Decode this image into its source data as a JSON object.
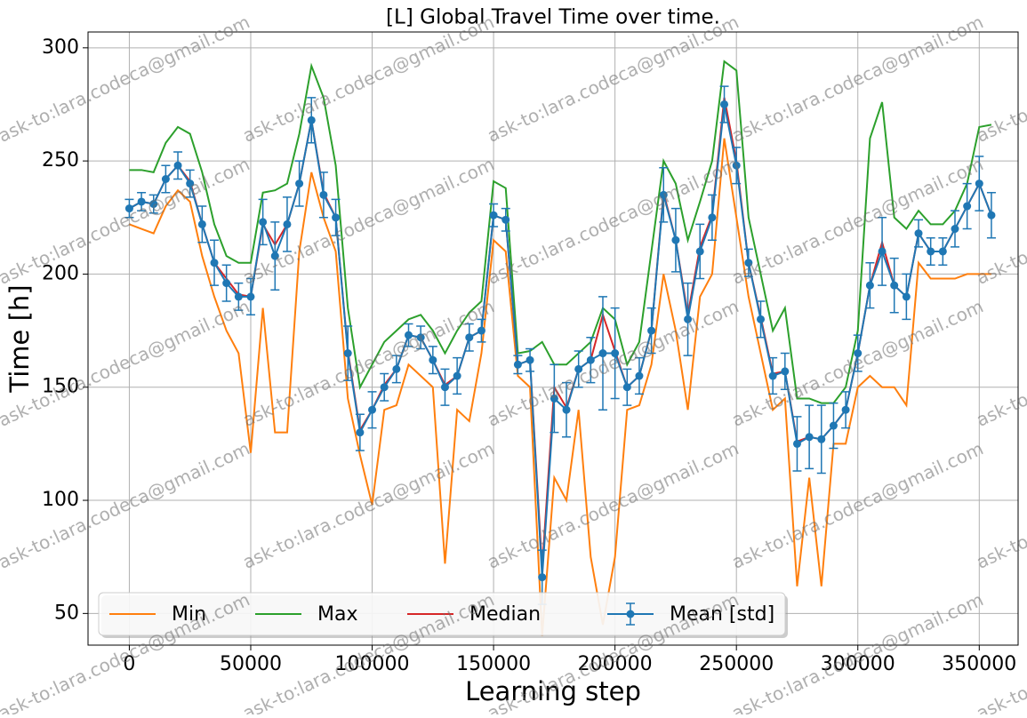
{
  "chart_data": {
    "type": "line",
    "title": "[L] Global Travel Time over time.",
    "xlabel": "Learning step",
    "ylabel": "Time [h]",
    "watermark": "ask-to:lara.codeca@gmail.com",
    "xlim": [
      -17000,
      366000
    ],
    "ylim": [
      36,
      307
    ],
    "xticks": [
      0,
      50000,
      100000,
      150000,
      200000,
      250000,
      300000,
      350000
    ],
    "yticks": [
      50,
      100,
      150,
      200,
      250,
      300
    ],
    "grid": true,
    "legend": "lower left",
    "x": [
      0,
      5000,
      10000,
      15000,
      20000,
      25000,
      30000,
      35000,
      40000,
      45000,
      50000,
      55000,
      60000,
      65000,
      70000,
      75000,
      80000,
      85000,
      90000,
      95000,
      100000,
      105000,
      110000,
      115000,
      120000,
      125000,
      130000,
      135000,
      140000,
      145000,
      150000,
      155000,
      160000,
      165000,
      170000,
      175000,
      180000,
      185000,
      190000,
      195000,
      200000,
      205000,
      210000,
      215000,
      220000,
      225000,
      230000,
      235000,
      240000,
      245000,
      250000,
      255000,
      260000,
      265000,
      270000,
      275000,
      280000,
      285000,
      290000,
      295000,
      300000,
      305000,
      310000,
      315000,
      320000,
      325000,
      330000,
      335000,
      340000,
      345000,
      350000,
      355000
    ],
    "series": [
      {
        "name": "Min",
        "color": "#ff7f0e",
        "values": [
          222,
          220,
          218,
          230,
          237,
          232,
          208,
          190,
          175,
          165,
          121,
          185,
          130,
          130,
          210,
          245,
          225,
          210,
          145,
          120,
          98,
          140,
          142,
          160,
          155,
          150,
          72,
          140,
          135,
          165,
          215,
          210,
          155,
          150,
          40,
          110,
          100,
          140,
          75,
          45,
          75,
          140,
          142,
          160,
          200,
          175,
          140,
          190,
          200,
          260,
          225,
          190,
          165,
          140,
          145,
          62,
          110,
          62,
          125,
          125,
          150,
          155,
          150,
          150,
          142,
          205,
          198,
          198,
          198,
          200,
          200,
          200
        ]
      },
      {
        "name": "Max",
        "color": "#2ca02c",
        "values": [
          246,
          246,
          245,
          258,
          265,
          262,
          245,
          222,
          208,
          205,
          205,
          236,
          237,
          240,
          262,
          292,
          278,
          248,
          185,
          150,
          160,
          170,
          175,
          180,
          182,
          175,
          165,
          175,
          183,
          188,
          241,
          238,
          165,
          166,
          170,
          160,
          160,
          165,
          170,
          185,
          180,
          160,
          170,
          210,
          250,
          240,
          215,
          232,
          250,
          294,
          290,
          225,
          200,
          175,
          185,
          145,
          145,
          143,
          143,
          150,
          175,
          260,
          276,
          225,
          220,
          228,
          222,
          222,
          228,
          240,
          265,
          266
        ]
      },
      {
        "name": "Median",
        "color": "#d62728",
        "values": [
          229,
          232,
          231,
          242,
          248,
          241,
          222,
          205,
          198,
          191,
          190,
          222,
          213,
          222,
          240,
          268,
          236,
          225,
          166,
          131,
          140,
          151,
          158,
          173,
          172,
          162,
          151,
          155,
          172,
          175,
          226,
          224,
          160,
          162,
          70,
          150,
          141,
          158,
          162,
          182,
          166,
          150,
          155,
          175,
          236,
          215,
          182,
          212,
          226,
          278,
          250,
          205,
          181,
          156,
          157,
          126,
          128,
          127,
          133,
          140,
          165,
          195,
          214,
          195,
          190,
          218,
          210,
          210,
          220,
          230,
          240,
          226
        ]
      },
      {
        "name": "Mean [std]",
        "color": "#1f77b4",
        "values": [
          229,
          232,
          231,
          242,
          248,
          240,
          222,
          205,
          196,
          190,
          190,
          223,
          208,
          222,
          240,
          268,
          235,
          225,
          165,
          130,
          140,
          150,
          158,
          173,
          172,
          162,
          150,
          155,
          172,
          175,
          226,
          224,
          160,
          162,
          66,
          145,
          140,
          158,
          162,
          165,
          165,
          150,
          155,
          175,
          235,
          215,
          180,
          210,
          225,
          275,
          248,
          205,
          180,
          155,
          157,
          125,
          128,
          127,
          133,
          140,
          165,
          195,
          210,
          195,
          190,
          218,
          210,
          210,
          220,
          230,
          240,
          226
        ],
        "errors": [
          4,
          4,
          4,
          6,
          6,
          6,
          8,
          10,
          8,
          6,
          8,
          10,
          15,
          12,
          10,
          10,
          10,
          8,
          12,
          8,
          8,
          6,
          6,
          5,
          5,
          6,
          8,
          8,
          6,
          5,
          5,
          5,
          4,
          5,
          12,
          15,
          12,
          8,
          10,
          25,
          20,
          8,
          8,
          10,
          12,
          14,
          16,
          12,
          10,
          8,
          8,
          6,
          8,
          8,
          8,
          12,
          14,
          15,
          10,
          8,
          8,
          10,
          15,
          12,
          10,
          6,
          6,
          6,
          8,
          10,
          12,
          10
        ]
      }
    ]
  }
}
